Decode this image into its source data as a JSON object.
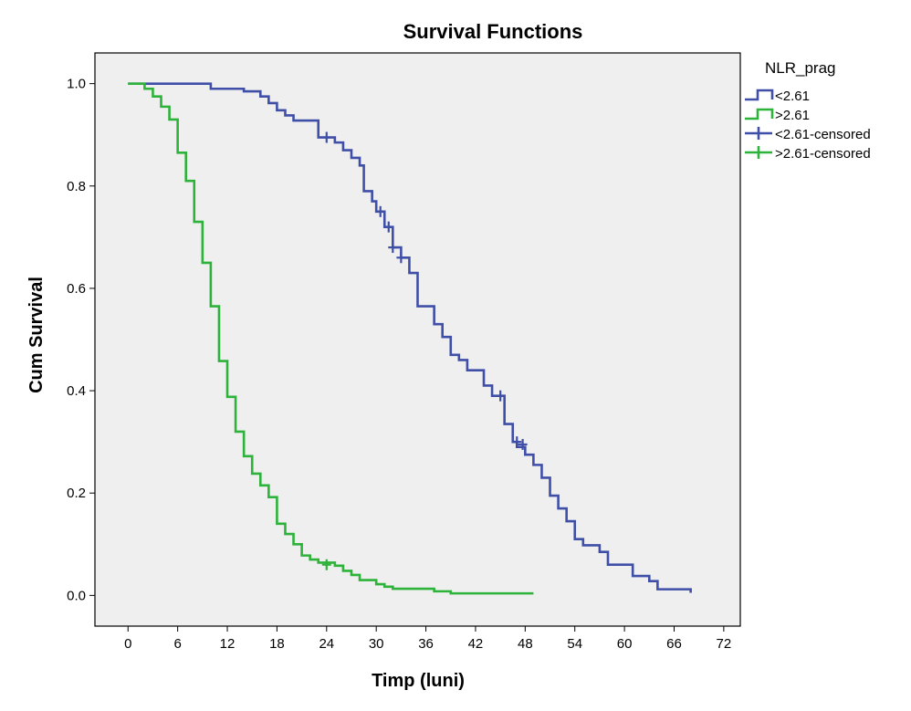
{
  "chart_data": {
    "type": "line",
    "title": "Survival Functions",
    "xlabel": "Timp (luni)",
    "ylabel": "Cum Survival",
    "xlim": [
      -4,
      74
    ],
    "ylim": [
      -0.06,
      1.06
    ],
    "xticks": [
      0,
      6,
      12,
      18,
      24,
      30,
      36,
      42,
      48,
      54,
      60,
      66,
      72
    ],
    "xtick_labels": [
      "0",
      "6",
      "12",
      "18",
      "24",
      "30",
      "36",
      "42",
      "48",
      "54",
      "60",
      "66",
      "72"
    ],
    "yticks": [
      0.0,
      0.2,
      0.4,
      0.6,
      0.8,
      1.0
    ],
    "ytick_labels": [
      "0.0",
      "0.2",
      "0.4",
      "0.6",
      "0.8",
      "1.0"
    ],
    "grid": false,
    "background": "#efefef",
    "legend": {
      "title": "NLR_prag",
      "placement": "right",
      "entries": [
        {
          "label": "<2.61",
          "style": "step",
          "series": 0
        },
        {
          "label": ">2.61",
          "style": "step",
          "series": 1
        },
        {
          "label": "<2.61-censored",
          "style": "censor",
          "series": 0
        },
        {
          "label": ">2.61-censored",
          "style": "censor",
          "series": 1
        }
      ]
    },
    "series": [
      {
        "name": "<2.61",
        "color": "#3f4fa8",
        "steps": [
          [
            0,
            1.0
          ],
          [
            4,
            1.0
          ],
          [
            10,
            0.99
          ],
          [
            14,
            0.985
          ],
          [
            16,
            0.975
          ],
          [
            17,
            0.962
          ],
          [
            18,
            0.948
          ],
          [
            19,
            0.938
          ],
          [
            20,
            0.928
          ],
          [
            23,
            0.895
          ],
          [
            25,
            0.885
          ],
          [
            26,
            0.87
          ],
          [
            27,
            0.855
          ],
          [
            28,
            0.84
          ],
          [
            28.5,
            0.79
          ],
          [
            29.5,
            0.77
          ],
          [
            30,
            0.75
          ],
          [
            31,
            0.72
          ],
          [
            32,
            0.68
          ],
          [
            33,
            0.66
          ],
          [
            34,
            0.63
          ],
          [
            35,
            0.565
          ],
          [
            37,
            0.53
          ],
          [
            38,
            0.505
          ],
          [
            39,
            0.47
          ],
          [
            40,
            0.46
          ],
          [
            41,
            0.44
          ],
          [
            43,
            0.41
          ],
          [
            44,
            0.39
          ],
          [
            45.5,
            0.335
          ],
          [
            46.5,
            0.3
          ],
          [
            47,
            0.29
          ],
          [
            48,
            0.275
          ],
          [
            49,
            0.255
          ],
          [
            50,
            0.23
          ],
          [
            51,
            0.195
          ],
          [
            52,
            0.17
          ],
          [
            53,
            0.145
          ],
          [
            54,
            0.11
          ],
          [
            55,
            0.098
          ],
          [
            57,
            0.085
          ],
          [
            58,
            0.06
          ],
          [
            61,
            0.038
          ],
          [
            63,
            0.028
          ],
          [
            64,
            0.012
          ],
          [
            68,
            0.005
          ]
        ],
        "end_x": 68,
        "censored": [
          [
            24,
            0.895
          ],
          [
            30.5,
            0.75
          ],
          [
            31.5,
            0.72
          ],
          [
            32,
            0.68
          ],
          [
            33,
            0.66
          ],
          [
            45,
            0.39
          ],
          [
            47,
            0.3
          ],
          [
            47.7,
            0.295
          ]
        ]
      },
      {
        "name": ">2.61",
        "color": "#2db23a",
        "steps": [
          [
            0,
            1.0
          ],
          [
            2,
            0.99
          ],
          [
            3,
            0.975
          ],
          [
            4,
            0.955
          ],
          [
            5,
            0.93
          ],
          [
            6,
            0.865
          ],
          [
            7,
            0.81
          ],
          [
            8,
            0.73
          ],
          [
            9,
            0.65
          ],
          [
            10,
            0.565
          ],
          [
            11,
            0.458
          ],
          [
            12,
            0.388
          ],
          [
            13,
            0.32
          ],
          [
            14,
            0.272
          ],
          [
            15,
            0.238
          ],
          [
            16,
            0.215
          ],
          [
            17,
            0.192
          ],
          [
            18,
            0.14
          ],
          [
            19,
            0.12
          ],
          [
            20,
            0.1
          ],
          [
            21,
            0.078
          ],
          [
            22,
            0.07
          ],
          [
            23,
            0.064
          ],
          [
            25,
            0.058
          ],
          [
            26,
            0.048
          ],
          [
            27,
            0.04
          ],
          [
            28,
            0.03
          ],
          [
            30,
            0.022
          ],
          [
            31,
            0.017
          ],
          [
            32,
            0.013
          ],
          [
            37,
            0.008
          ],
          [
            39,
            0.004
          ]
        ],
        "end_x": 49,
        "censored": [
          [
            24,
            0.06
          ]
        ]
      }
    ]
  }
}
